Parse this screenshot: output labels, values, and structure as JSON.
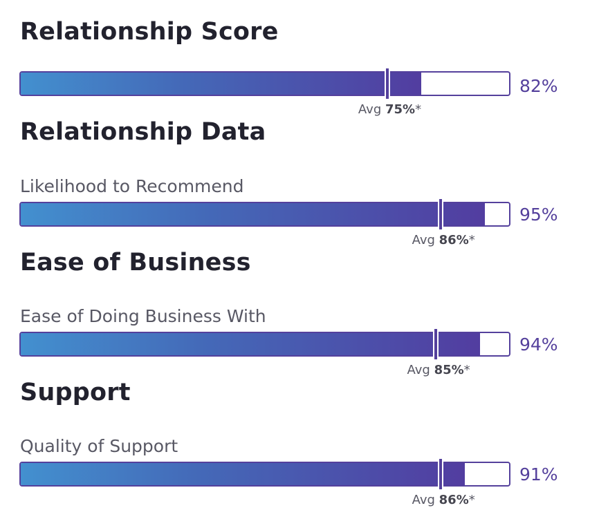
{
  "accent_color": "#54409C",
  "sections": [
    {
      "heading": "Relationship Score",
      "metric_label": "",
      "score_text": "82%",
      "score_value": 82,
      "avg_prefix": "Avg",
      "avg_text": "75%",
      "avg_suffix": "*",
      "avg_value": 75
    },
    {
      "heading": "Relationship Data",
      "metric_label": "Likelihood to Recommend",
      "score_text": "95%",
      "score_value": 95,
      "avg_prefix": "Avg",
      "avg_text": "86%",
      "avg_suffix": "*",
      "avg_value": 86
    },
    {
      "heading": "Ease of Business",
      "metric_label": "Ease of Doing Business With",
      "score_text": "94%",
      "score_value": 94,
      "avg_prefix": "Avg",
      "avg_text": "85%",
      "avg_suffix": "*",
      "avg_value": 85
    },
    {
      "heading": "Support",
      "metric_label": "Quality of Support",
      "score_text": "91%",
      "score_value": 91,
      "avg_prefix": "Avg",
      "avg_text": "86%",
      "avg_suffix": "*",
      "avg_value": 86
    }
  ]
}
